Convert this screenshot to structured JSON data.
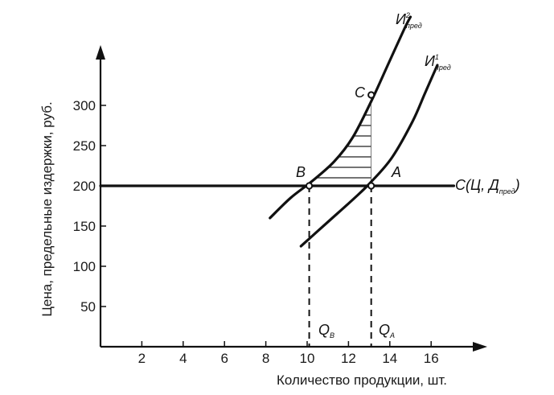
{
  "chart_data": {
    "type": "line",
    "xlabel": "Количество продукции, шт.",
    "ylabel": "Цена, предельные издержки, руб.",
    "xlim": [
      0,
      18
    ],
    "ylim": [
      0,
      370
    ],
    "x_ticks": [
      2,
      4,
      6,
      8,
      10,
      12,
      14,
      16
    ],
    "y_ticks": [
      50,
      100,
      150,
      200,
      250,
      300
    ],
    "series": [
      {
        "id": "mc2",
        "label_main": "И",
        "label_sup": "2",
        "label_sub": "пред",
        "points": [
          [
            8.2,
            160
          ],
          [
            9.2,
            185
          ],
          [
            10.2,
            205
          ],
          [
            11.3,
            230
          ],
          [
            12.2,
            260
          ],
          [
            13.1,
            305
          ],
          [
            13.9,
            350
          ],
          [
            14.7,
            395
          ],
          [
            15.0,
            410
          ]
        ]
      },
      {
        "id": "mc1",
        "label_main": "И",
        "label_sup": "1",
        "label_sub": "пред",
        "points": [
          [
            9.7,
            125
          ],
          [
            11.0,
            155
          ],
          [
            12.3,
            185
          ],
          [
            13.1,
            205
          ],
          [
            14.1,
            235
          ],
          [
            15.1,
            280
          ],
          [
            15.7,
            315
          ],
          [
            16.3,
            350
          ]
        ]
      },
      {
        "id": "demand",
        "label_main": "С(Ц, Д",
        "label_sub": "пред",
        "label_tail": ")",
        "points": [
          [
            0,
            200
          ],
          [
            17.1,
            200
          ]
        ]
      }
    ],
    "points": [
      {
        "id": "B",
        "label": "B",
        "x": 10.1,
        "y": 200
      },
      {
        "id": "A",
        "label": "A",
        "x": 13.1,
        "y": 200
      },
      {
        "id": "C",
        "label": "C",
        "x": 13.1,
        "y": 313
      }
    ],
    "vlines": [
      {
        "id": "qb",
        "x": 10.1,
        "label_main": "Q",
        "label_sub": "В"
      },
      {
        "id": "qa",
        "x": 13.1,
        "label_main": "Q",
        "label_sub": "А"
      }
    ],
    "hatch_region": {
      "x_from": 10.1,
      "x_to": 13.1,
      "y_from": 200,
      "boundary": "mc2"
    },
    "colors": {
      "line": "#111111",
      "background": "#ffffff"
    }
  }
}
